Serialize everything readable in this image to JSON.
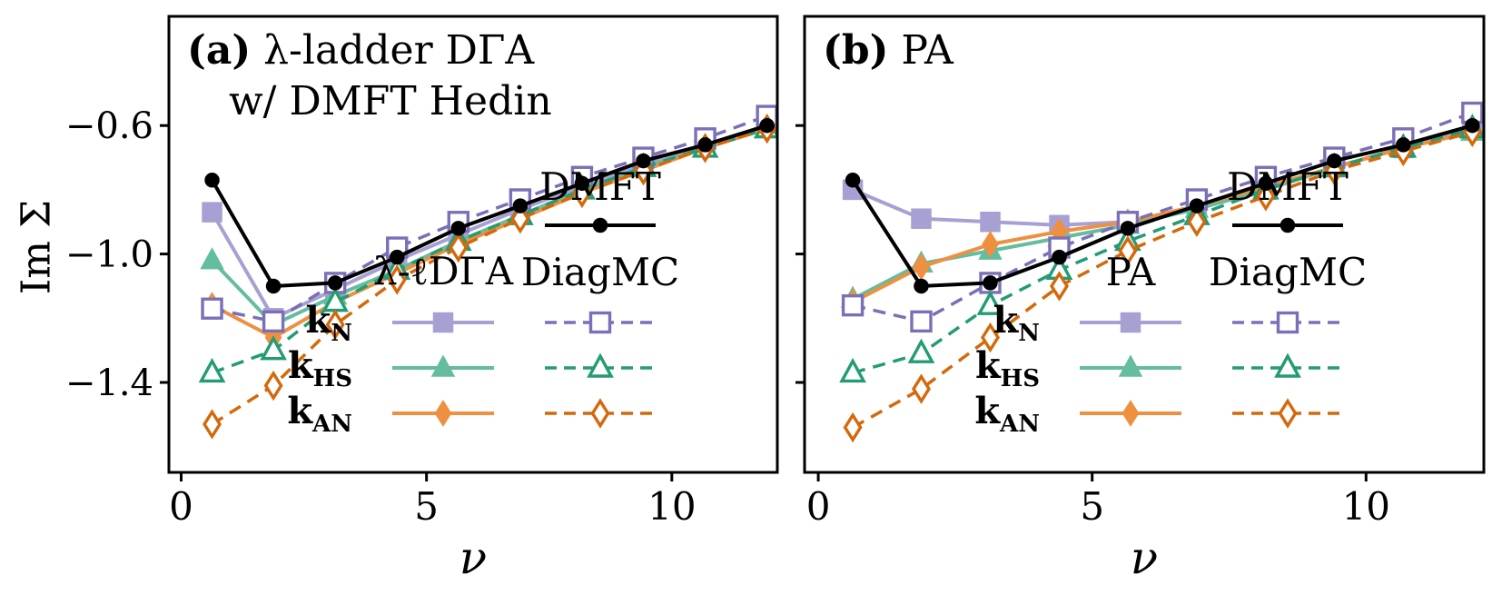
{
  "chart_data": [
    {
      "type": "line",
      "title": {
        "prefix": "(a)",
        "line1": "λ-ladder DΓA",
        "line2": "w/ DMFT Hedin"
      },
      "xlabel": "ν",
      "ylabel": "Im Σ",
      "xlim": [
        -0.25,
        12.15
      ],
      "ylim": [
        -1.68,
        -0.26
      ],
      "xticks": [
        0,
        5,
        10
      ],
      "yticks": [
        -0.6,
        -1.0,
        -1.4
      ],
      "x": [
        0.63,
        1.88,
        3.14,
        4.4,
        5.65,
        6.91,
        8.17,
        9.42,
        10.68,
        11.94
      ],
      "series": [
        {
          "id": "kN-solid",
          "name": "k_N λ-ℓDΓA",
          "color": "#a7a1d3",
          "dash": false,
          "open": false,
          "marker": "square",
          "lw": 4,
          "values": [
            -0.87,
            -1.2,
            -1.11,
            -1.02,
            -0.94,
            -0.86,
            -0.79,
            -0.72,
            -0.66,
            -0.6
          ]
        },
        {
          "id": "kHS-solid",
          "name": "k_HS λ-ℓDΓA",
          "color": "#63bd9e",
          "dash": false,
          "open": false,
          "marker": "triangle",
          "lw": 4,
          "values": [
            -1.02,
            -1.22,
            -1.13,
            -1.05,
            -0.96,
            -0.88,
            -0.8,
            -0.73,
            -0.67,
            -0.61
          ]
        },
        {
          "id": "kAN-solid",
          "name": "k_AN λ-ℓDΓA",
          "color": "#ee9040",
          "dash": false,
          "open": false,
          "marker": "diamond",
          "lw": 4,
          "values": [
            -1.16,
            -1.26,
            -1.15,
            -1.06,
            -0.97,
            -0.89,
            -0.81,
            -0.74,
            -0.67,
            -0.61
          ]
        },
        {
          "id": "kN-diagmc",
          "name": "k_N DiagMC",
          "color": "#7b70b7",
          "dash": true,
          "open": true,
          "marker": "square",
          "lw": 3.5,
          "values": [
            -1.17,
            -1.21,
            -1.09,
            -0.98,
            -0.9,
            -0.83,
            -0.76,
            -0.7,
            -0.64,
            -0.57
          ]
        },
        {
          "id": "kHS-diagmc",
          "name": "k_HS DiagMC",
          "color": "#239c75",
          "dash": true,
          "open": true,
          "marker": "triangle",
          "lw": 3.5,
          "values": [
            -1.37,
            -1.3,
            -1.15,
            -1.05,
            -0.96,
            -0.88,
            -0.8,
            -0.73,
            -0.67,
            -0.61
          ]
        },
        {
          "id": "kAN-diagmc",
          "name": "k_AN DiagMC",
          "color": "#d4690b",
          "dash": true,
          "open": true,
          "marker": "diamond",
          "lw": 3.5,
          "values": [
            -1.53,
            -1.41,
            -1.22,
            -1.08,
            -0.98,
            -0.89,
            -0.81,
            -0.74,
            -0.67,
            -0.61
          ]
        },
        {
          "id": "dmft",
          "name": "DMFT",
          "color": "#000000",
          "dash": false,
          "open": false,
          "marker": "circle",
          "lw": 4,
          "values": [
            -0.77,
            -1.1,
            -1.09,
            -1.01,
            -0.92,
            -0.85,
            -0.78,
            -0.71,
            -0.66,
            -0.6
          ]
        }
      ],
      "legend": {
        "dmft": "DMFT",
        "method": "λ-ℓDΓA",
        "diagmc": "DiagMC",
        "rows": [
          {
            "base": "k",
            "sub": "N"
          },
          {
            "base": "k",
            "sub": "HS"
          },
          {
            "base": "k",
            "sub": "AN"
          }
        ]
      }
    },
    {
      "type": "line",
      "title": {
        "prefix": "(b)",
        "line1": "PA",
        "line2": ""
      },
      "xlabel": "ν",
      "ylabel": "Im Σ",
      "xlim": [
        -0.25,
        12.15
      ],
      "ylim": [
        -1.68,
        -0.26
      ],
      "xticks": [
        0,
        5,
        10
      ],
      "yticks": [
        -0.6,
        -1.0,
        -1.4
      ],
      "x": [
        0.63,
        1.88,
        3.14,
        4.4,
        5.65,
        6.91,
        8.17,
        9.42,
        10.68,
        11.94
      ],
      "series": [
        {
          "id": "kN-solid",
          "name": "k_N PA",
          "color": "#a7a1d3",
          "dash": false,
          "open": false,
          "marker": "square",
          "lw": 4,
          "values": [
            -0.8,
            -0.89,
            -0.9,
            -0.91,
            -0.9,
            -0.86,
            -0.8,
            -0.73,
            -0.67,
            -0.61
          ]
        },
        {
          "id": "kHS-solid",
          "name": "k_HS PA",
          "color": "#63bd9e",
          "dash": false,
          "open": false,
          "marker": "triangle",
          "lw": 4,
          "values": [
            -1.14,
            -1.03,
            -0.99,
            -0.95,
            -0.91,
            -0.86,
            -0.8,
            -0.73,
            -0.67,
            -0.62
          ]
        },
        {
          "id": "kAN-solid",
          "name": "k_AN PA",
          "color": "#ee9040",
          "dash": false,
          "open": false,
          "marker": "diamond",
          "lw": 4,
          "values": [
            -1.15,
            -1.04,
            -0.97,
            -0.93,
            -0.9,
            -0.85,
            -0.79,
            -0.73,
            -0.67,
            -0.62
          ]
        },
        {
          "id": "kN-diagmc",
          "name": "k_N DiagMC",
          "color": "#7b70b7",
          "dash": true,
          "open": true,
          "marker": "square",
          "lw": 3.5,
          "values": [
            -1.16,
            -1.21,
            -1.09,
            -0.98,
            -0.9,
            -0.83,
            -0.76,
            -0.7,
            -0.64,
            -0.56
          ]
        },
        {
          "id": "kHS-diagmc",
          "name": "k_HS DiagMC",
          "color": "#239c75",
          "dash": true,
          "open": true,
          "marker": "triangle",
          "lw": 3.5,
          "values": [
            -1.37,
            -1.31,
            -1.16,
            -1.05,
            -0.96,
            -0.88,
            -0.8,
            -0.73,
            -0.67,
            -0.61
          ]
        },
        {
          "id": "kAN-diagmc",
          "name": "k_AN DiagMC",
          "color": "#d4690b",
          "dash": true,
          "open": true,
          "marker": "diamond",
          "lw": 3.5,
          "values": [
            -1.54,
            -1.42,
            -1.26,
            -1.1,
            -0.99,
            -0.9,
            -0.82,
            -0.74,
            -0.68,
            -0.62
          ]
        },
        {
          "id": "dmft",
          "name": "DMFT",
          "color": "#000000",
          "dash": false,
          "open": false,
          "marker": "circle",
          "lw": 4,
          "values": [
            -0.77,
            -1.1,
            -1.09,
            -1.01,
            -0.92,
            -0.85,
            -0.78,
            -0.71,
            -0.66,
            -0.6
          ]
        }
      ],
      "legend": {
        "dmft": "DMFT",
        "method": "PA",
        "diagmc": "DiagMC",
        "rows": [
          {
            "base": "k",
            "sub": "N"
          },
          {
            "base": "k",
            "sub": "HS"
          },
          {
            "base": "k",
            "sub": "AN"
          }
        ]
      }
    }
  ]
}
